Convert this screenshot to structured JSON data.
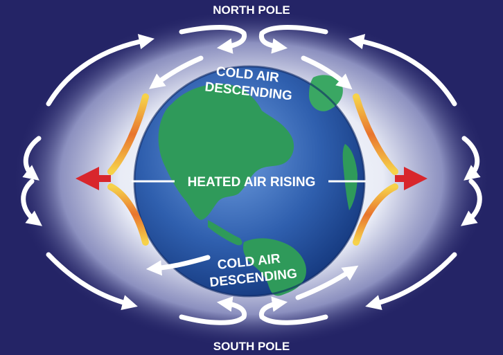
{
  "labels": {
    "north_pole": "NORTH POLE",
    "south_pole": "SOUTH POLE",
    "cold_air_top_line1": "COLD AIR",
    "cold_air_top_line2": "DESCENDING",
    "cold_air_bottom_line1": "COLD AIR",
    "cold_air_bottom_line2": "DESCENDING",
    "heated_air": "HEATED AIR RISING"
  },
  "colors": {
    "background": "#242466",
    "ocean": "#2f5fae",
    "land": "#2f9a5a",
    "cold_arrow": "#ffffff",
    "warm_arrow_yellow": "#f6d24a",
    "warm_arrow_red": "#d8262c"
  }
}
